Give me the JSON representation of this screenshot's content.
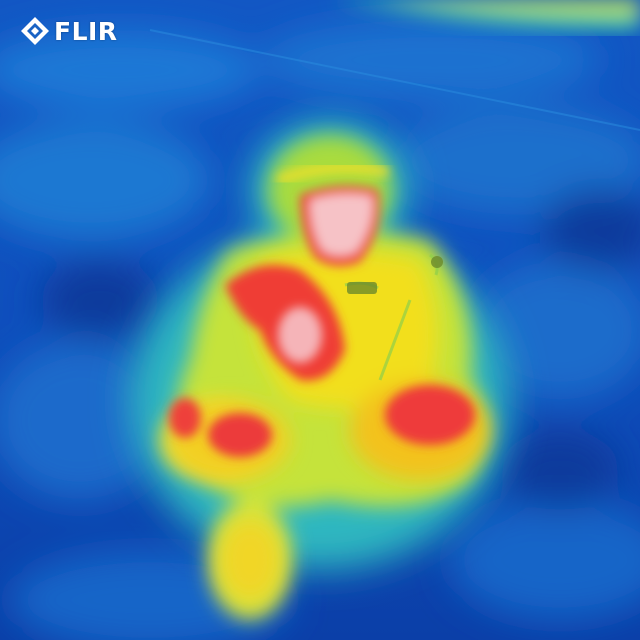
{
  "logo": {
    "text": "FLIR",
    "icon": "flir-diamond-icon",
    "color": "#ffffff"
  },
  "scene": {
    "subject": "thermal-image-person-sitting",
    "palette": "rainbow",
    "colors": {
      "cold": "#0b45b8",
      "cool": "#1c86d6",
      "mild": "#35c9b0",
      "warm": "#c8e83a",
      "hot": "#f5e21a",
      "very_hot": "#f0452e",
      "hottest": "#f7c4c4"
    }
  }
}
